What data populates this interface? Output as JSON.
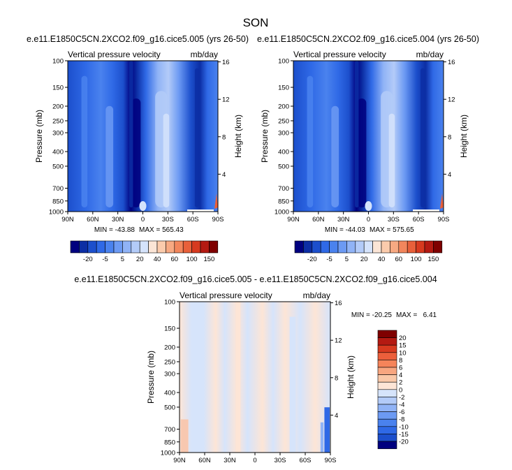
{
  "figure": {
    "season": "SON"
  },
  "chart_data": [
    {
      "type": "heatmap",
      "panel": "case1",
      "title": "e.e11.E1850C5CN.2XCO2.f09_g16.cice5.005 (yrs 26-50)",
      "left_string": "Vertical pressure velocity",
      "right_string": "mb/day",
      "xlabel": "",
      "ylabel": "Pressure (mb)",
      "ylabel_right": "Height (km)",
      "x_ticks": [
        "90N",
        "60N",
        "30N",
        "0",
        "30S",
        "60S",
        "90S"
      ],
      "x_tick_values": [
        90,
        60,
        30,
        0,
        -30,
        -60,
        -90
      ],
      "y_ticks": [
        "100",
        "150",
        "200",
        "250",
        "300",
        "400",
        "500",
        "700",
        "850",
        "1000"
      ],
      "y_tick_values": [
        100,
        150,
        200,
        250,
        300,
        400,
        500,
        700,
        850,
        1000
      ],
      "right_ticks": [
        "4",
        "8",
        "12",
        "16"
      ],
      "right_tick_values": [
        4,
        8,
        12,
        16
      ],
      "xlim": [
        90,
        -90
      ],
      "ylim": [
        1000,
        100
      ],
      "min_label": "MIN = -43.88",
      "max_label": "MAX = 565.43",
      "min": -43.88,
      "max": 565.43
    },
    {
      "type": "heatmap",
      "panel": "case2",
      "title": "e.e11.E1850C5CN.2XCO2.f09_g16.cice5.004 (yrs 26-50)",
      "left_string": "Vertical pressure velocity",
      "right_string": "mb/day",
      "xlabel": "",
      "ylabel": "Pressure (mb)",
      "ylabel_right": "Height (km)",
      "x_ticks": [
        "90N",
        "60N",
        "30N",
        "0",
        "30S",
        "60S",
        "90S"
      ],
      "x_tick_values": [
        90,
        60,
        30,
        0,
        -30,
        -60,
        -90
      ],
      "y_ticks": [
        "100",
        "150",
        "200",
        "250",
        "300",
        "400",
        "500",
        "700",
        "850",
        "1000"
      ],
      "y_tick_values": [
        100,
        150,
        200,
        250,
        300,
        400,
        500,
        700,
        850,
        1000
      ],
      "right_ticks": [
        "4",
        "8",
        "12",
        "16"
      ],
      "right_tick_values": [
        4,
        8,
        12,
        16
      ],
      "xlim": [
        90,
        -90
      ],
      "ylim": [
        1000,
        100
      ],
      "min_label": "MIN = -44.03",
      "max_label": "MAX = 575.65",
      "min": -44.03,
      "max": 575.65
    },
    {
      "type": "heatmap",
      "panel": "difference",
      "title": "e.e11.E1850C5CN.2XCO2.f09_g16.cice5.005 - e.e11.E1850C5CN.2XCO2.f09_g16.cice5.004",
      "left_string": "Vertical pressure velocity",
      "right_string": "mb/day",
      "xlabel": "",
      "ylabel": "Pressure (mb)",
      "ylabel_right": "Height (km)",
      "x_ticks": [
        "90N",
        "60N",
        "30N",
        "0",
        "30S",
        "60S",
        "90S"
      ],
      "x_tick_values": [
        90,
        60,
        30,
        0,
        -30,
        -60,
        -90
      ],
      "y_ticks": [
        "100",
        "150",
        "200",
        "250",
        "300",
        "400",
        "500",
        "700",
        "850",
        "1000"
      ],
      "y_tick_values": [
        100,
        150,
        200,
        250,
        300,
        400,
        500,
        700,
        850,
        1000
      ],
      "right_ticks": [
        "4",
        "8",
        "12",
        "16"
      ],
      "right_tick_values": [
        4,
        8,
        12,
        16
      ],
      "xlim": [
        90,
        -90
      ],
      "ylim": [
        1000,
        100
      ],
      "min_label": "MIN = -20.25",
      "max_label": "MAX =   6.41",
      "min": -20.25,
      "max": 6.41
    }
  ],
  "colorbars": {
    "main": {
      "orientation": "horizontal",
      "colors": [
        "#00007f",
        "#0c2ea4",
        "#1c4fcc",
        "#2f69e6",
        "#4a82ee",
        "#6c9af3",
        "#90b3f6",
        "#b3cbf8",
        "#d5e3fb",
        "#fbe5d6",
        "#fbcbac",
        "#f7a982",
        "#f2865c",
        "#e8603a",
        "#d73a1f",
        "#b41a12",
        "#7f0000"
      ],
      "labels": [
        "-20",
        "-5",
        "5",
        "20",
        "40",
        "60",
        "100",
        "150"
      ]
    },
    "diff": {
      "orientation": "vertical",
      "colors": [
        "#7f0000",
        "#b41a12",
        "#d73a1f",
        "#ec5f3b",
        "#f5845a",
        "#f8a680",
        "#fac8a8",
        "#fde5d6",
        "#d6e4fb",
        "#b3cbf8",
        "#90b3f6",
        "#6c9af3",
        "#4a82ee",
        "#2f69e6",
        "#1c4fcc",
        "#00007f"
      ],
      "labels": [
        "20",
        "15",
        "10",
        "8",
        "6",
        "4",
        "2",
        "0",
        "-2",
        "-4",
        "-6",
        "-8",
        "-10",
        "-15",
        "-20"
      ]
    }
  }
}
